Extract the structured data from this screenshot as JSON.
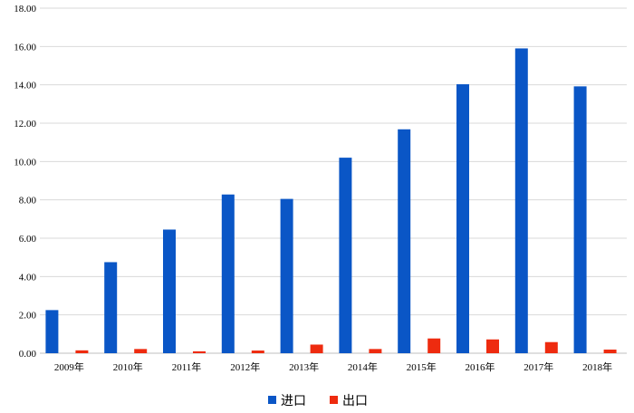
{
  "chart_data": {
    "type": "bar",
    "categories": [
      "2009年",
      "2010年",
      "2011年",
      "2012年",
      "2013年",
      "2014年",
      "2015年",
      "2016年",
      "2017年",
      "2018年"
    ],
    "series": [
      {
        "name": "进口",
        "color": "#0a56c6",
        "values": [
          2.25,
          4.75,
          6.45,
          8.28,
          8.05,
          10.2,
          11.68,
          14.03,
          15.9,
          13.92
        ]
      },
      {
        "name": "出口",
        "color": "#ee2b0f",
        "values": [
          0.15,
          0.22,
          0.1,
          0.14,
          0.45,
          0.22,
          0.77,
          0.72,
          0.58,
          0.19
        ]
      }
    ],
    "yticks": [
      "0.00",
      "2.00",
      "4.00",
      "6.00",
      "8.00",
      "10.00",
      "12.00",
      "14.00",
      "16.00",
      "18.00"
    ],
    "ylim": [
      0,
      18
    ],
    "title": "",
    "xlabel": "",
    "ylabel": "",
    "grid": true,
    "legend_position": "bottom"
  }
}
